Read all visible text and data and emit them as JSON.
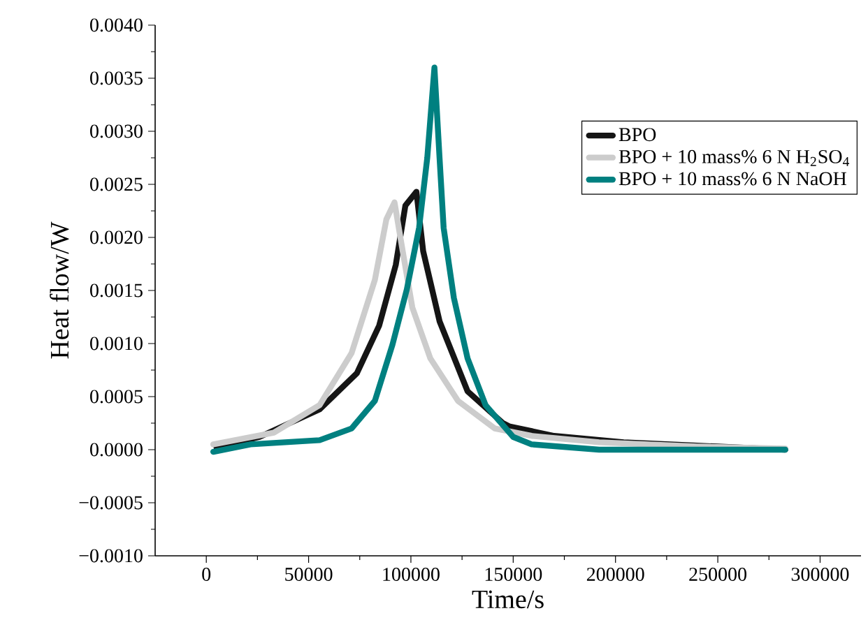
{
  "chart_data": {
    "type": "line",
    "xlabel": "Time/s",
    "ylabel": "Heat flow/W",
    "xlim": [
      -25000,
      320000
    ],
    "xticks": [
      0,
      50000,
      100000,
      150000,
      200000,
      250000,
      300000
    ],
    "ylim": [
      -0.001,
      0.004
    ],
    "yticks": [
      {
        "value": -0.001,
        "label": "−0.0010"
      },
      {
        "value": -0.0005,
        "label": "−0.0005"
      },
      {
        "value": 0,
        "label": "0.0000"
      },
      {
        "value": 0.0005,
        "label": "0.0005"
      },
      {
        "value": 0.001,
        "label": "0.0010"
      },
      {
        "value": 0.0015,
        "label": "0.0015"
      },
      {
        "value": 0.002,
        "label": "0.0020"
      },
      {
        "value": 0.0025,
        "label": "0.0025"
      },
      {
        "value": 0.003,
        "label": "0.0030"
      },
      {
        "value": 0.0035,
        "label": "0.0035"
      },
      {
        "value": 0.004,
        "label": "0.0040"
      }
    ],
    "grid": false,
    "legend": "top right",
    "marker": "none",
    "line_style": "solid",
    "series": [
      {
        "name": "BPO",
        "color": "#151515",
        "x": [
          5000,
          26000,
          55400,
          73600,
          84500,
          92600,
          97300,
          102700,
          106000,
          114000,
          127700,
          145000,
          148000,
          170000,
          204000,
          238000,
          283000
        ],
        "values": [
          2e-05,
          0.00012,
          0.00038,
          0.00072,
          0.00117,
          0.00174,
          0.0023,
          0.00243,
          0.00187,
          0.00121,
          0.00055,
          0.00025,
          0.00022,
          0.00013,
          7e-05,
          4e-05,
          0.0
        ]
      },
      {
        "name": "BPO + 10 mass% 6 N H$_{2}$SO$_{4}$",
        "color": "#cccccc",
        "x": [
          3400,
          33000,
          55400,
          71000,
          82400,
          88000,
          92000,
          96000,
          100700,
          109500,
          123000,
          141000,
          159000,
          192000,
          240000,
          283000
        ],
        "values": [
          5e-05,
          0.00016,
          0.00042,
          0.00091,
          0.0016,
          0.00217,
          0.00233,
          0.00187,
          0.00134,
          0.00086,
          0.00046,
          0.0002,
          0.00013,
          7e-05,
          3e-05,
          1e-05
        ]
      },
      {
        "name": "BPO + 10 mass% 6 N NaOH",
        "color": "#008080",
        "x": [
          3400,
          21600,
          55400,
          71000,
          82400,
          91000,
          98000,
          104000,
          108000,
          111500,
          114000,
          116000,
          121000,
          127700,
          136500,
          150000,
          159000,
          192000,
          283000
        ],
        "values": [
          -2e-05,
          5e-05,
          9e-05,
          0.0002,
          0.00046,
          0.00099,
          0.00151,
          0.00209,
          0.00275,
          0.0036,
          0.00275,
          0.00209,
          0.00143,
          0.00086,
          0.00042,
          0.00012,
          5e-05,
          0.0,
          0.0
        ]
      }
    ]
  }
}
